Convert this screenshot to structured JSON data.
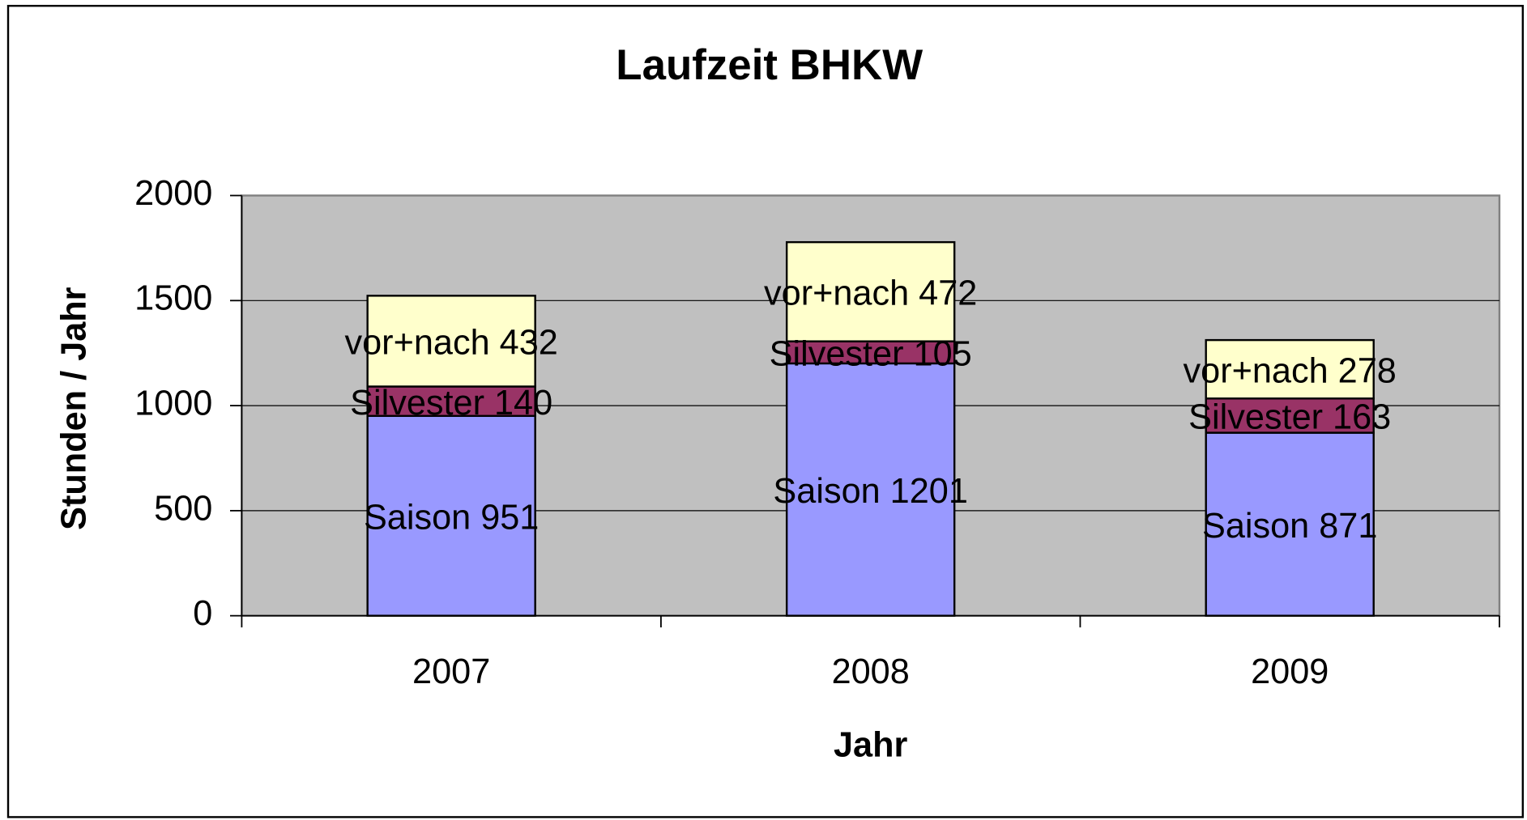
{
  "chart_data": {
    "type": "stacked_bar",
    "title": "Laufzeit BHKW",
    "x_label": "Jahr",
    "y_label": "Stunden / Jahr",
    "categories": [
      "2007",
      "2008",
      "2009"
    ],
    "series": [
      {
        "name": "Saison",
        "color": "#9999ff",
        "values": [
          951,
          1201,
          871
        ],
        "value_labels": [
          "Saison 951",
          "Saison 1201",
          "Saison 871"
        ]
      },
      {
        "name": "Silvester",
        "color": "#993366",
        "values": [
          140,
          105,
          163
        ],
        "value_labels": [
          "Silvester 140",
          "Silvester 105",
          "Silvester 163"
        ]
      },
      {
        "name": "vor+nach",
        "color": "#ffffcc",
        "values": [
          432,
          472,
          278
        ],
        "value_labels": [
          "vor+nach 432",
          "vor+nach 472",
          "vor+nach 278"
        ]
      }
    ],
    "ylim": [
      0,
      2000
    ],
    "yticks": [
      0,
      500,
      1000,
      1500,
      2000
    ],
    "grid": true
  }
}
